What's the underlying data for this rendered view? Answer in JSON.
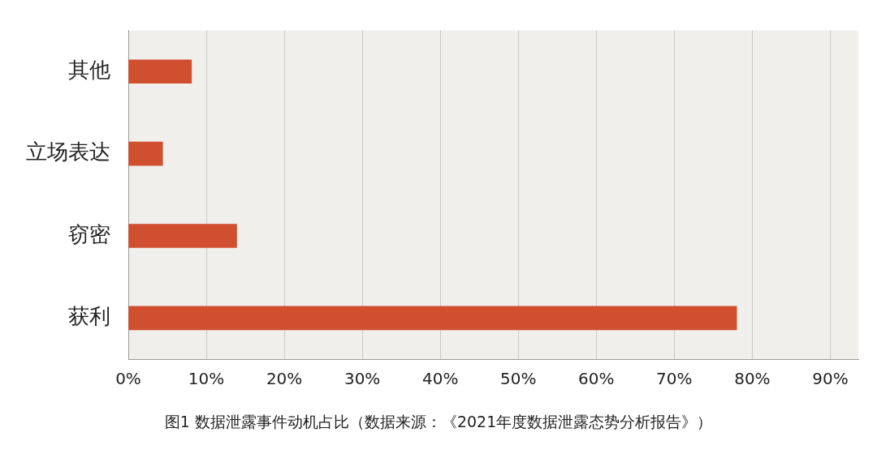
{
  "chart_data": {
    "type": "bar",
    "orientation": "horizontal",
    "categories": [
      "其他",
      "立场表达",
      "窃密",
      "获利"
    ],
    "values": [
      8.1,
      4.4,
      13.9,
      78
    ],
    "color": "#cf4f2e",
    "xlim": [
      0,
      93.6
    ],
    "xticks": [
      {
        "value": 0,
        "label": "0%"
      },
      {
        "value": 10,
        "label": "10%"
      },
      {
        "value": 20,
        "label": "20%"
      },
      {
        "value": 30,
        "label": "30%"
      },
      {
        "value": 40,
        "label": "40%"
      },
      {
        "value": 50,
        "label": "50%"
      },
      {
        "value": 60,
        "label": "60%"
      },
      {
        "value": 70,
        "label": "70%"
      },
      {
        "value": 80,
        "label": "80%"
      },
      {
        "value": 90,
        "label": "90%"
      }
    ],
    "grid": "x",
    "legend": false,
    "annotations": [
      "图1 数据泄露事件动机占比（数据来源：《2021年度数据泄露态势分析报告》）"
    ]
  }
}
